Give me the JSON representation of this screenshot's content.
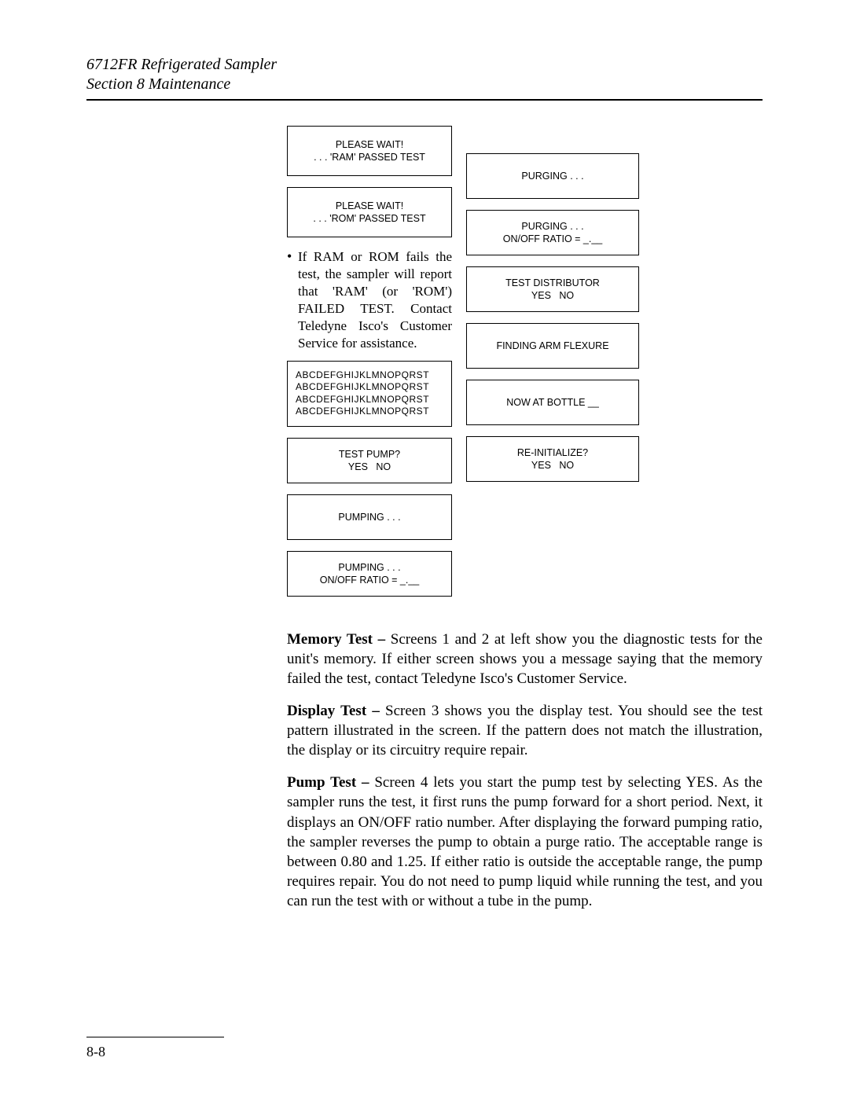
{
  "header": {
    "product": "6712FR Refrigerated Sampler",
    "section": "Section 8   Maintenance"
  },
  "left_column": {
    "screen1": {
      "line1": "PLEASE WAIT!",
      "line2": ". . . 'RAM' PASSED TEST"
    },
    "screen2": {
      "line1": "PLEASE WAIT!",
      "line2": ". . . 'ROM' PASSED TEST"
    },
    "bullet": "If RAM or ROM fails the test, the sampler will report that 'RAM' (or 'ROM') FAILED TEST. Contact Teledyne Isco's Customer Service for assistance.",
    "screen3": {
      "l1": "ABCDEFGHIJKLMNOPQRST",
      "l2": "ABCDEFGHIJKLMNOPQRST",
      "l3": "ABCDEFGHIJKLMNOPQRST",
      "l4": "ABCDEFGHIJKLMNOPQRST"
    },
    "screen4": {
      "line1": "TEST PUMP?",
      "line2": "YES   NO"
    },
    "screen5": {
      "line1": "PUMPING . . ."
    },
    "screen6": {
      "line1": "PUMPING . . .",
      "line2": "ON/OFF RATIO = _.__"
    }
  },
  "right_column": {
    "screenA": {
      "line1": "PURGING . . ."
    },
    "screenB": {
      "line1": "PURGING . . .",
      "line2": "ON/OFF RATIO = _.__"
    },
    "screenC": {
      "line1": "TEST DISTRIBUTOR",
      "line2": "YES   NO"
    },
    "screenD": {
      "line1": "FINDING ARM FLEXURE"
    },
    "screenE": {
      "line1": "NOW AT BOTTLE __"
    },
    "screenF": {
      "line1": "RE-INITIALIZE?",
      "line2": "YES   NO"
    }
  },
  "body": {
    "p1_label": "Memory Test –",
    "p1_text": " Screens 1 and 2 at left show you the diagnostic tests for the unit's memory. If either screen shows you a message saying that the memory failed the test, contact Teledyne Isco's Customer Service.",
    "p2_label": "Display Test –",
    "p2_text": " Screen 3 shows you the display test. You should see the test pattern illustrated in the screen. If the pattern does not match the illustration, the display or its circuitry require repair.",
    "p3_label": "Pump Test –",
    "p3_text": " Screen 4 lets you start the pump test by selecting YES. As the sampler runs the test, it first runs the pump forward for a short period. Next, it displays an ON/OFF ratio number. After displaying the forward pumping ratio, the sampler reverses the pump to obtain a purge ratio. The acceptable range is between 0.80 and 1.25. If either ratio is outside the acceptable range, the pump requires repair. You do not need to pump liquid while running the test, and you can run the test with or without a tube in the pump."
  },
  "footer": {
    "page_number": "8-8"
  }
}
